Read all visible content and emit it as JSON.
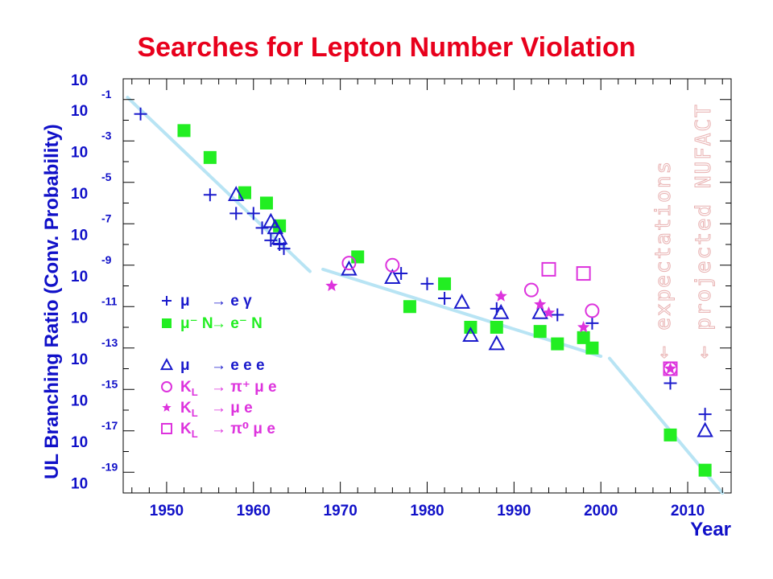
{
  "chart_data": {
    "type": "scatter",
    "title": "Searches for Lepton Number Violation",
    "xlabel": "Year",
    "ylabel": "UL Branching Ratio (Conv. Probability)",
    "xlim": [
      1945,
      2015
    ],
    "ylim_exponent": [
      -20,
      0
    ],
    "y_scale": "log",
    "x_ticks": [
      "1950",
      "1960",
      "1970",
      "1980",
      "1990",
      "2000",
      "2010"
    ],
    "y_ticks": [
      {
        "base": "10",
        "exp": ""
      },
      {
        "base": "10",
        "exp": "-1"
      },
      {
        "base": "10",
        "exp": "-3"
      },
      {
        "base": "10",
        "exp": "-5"
      },
      {
        "base": "10",
        "exp": "-7"
      },
      {
        "base": "10",
        "exp": "-9"
      },
      {
        "base": "10",
        "exp": "-11"
      },
      {
        "base": "10",
        "exp": "-13"
      },
      {
        "base": "10",
        "exp": "-15"
      },
      {
        "base": "10",
        "exp": "-17"
      },
      {
        "base": "10",
        "exp": "-19"
      }
    ],
    "colors": {
      "blue": "#1a1acc",
      "green": "#22ee22",
      "magenta": "#dd33dd",
      "trend": "#b8e4f4",
      "annotation": "#e8b0b0"
    },
    "series": [
      {
        "legend": [
          "μ",
          "→ e γ"
        ],
        "marker": "plus",
        "color": "#1a1acc",
        "points": [
          [
            1947,
            -1.7
          ],
          [
            1955,
            -5.6
          ],
          [
            1958,
            -6.5
          ],
          [
            1960,
            -6.5
          ],
          [
            1961,
            -7.2
          ],
          [
            1962,
            -7.8
          ],
          [
            1963,
            -8.0
          ],
          [
            1963.5,
            -8.2
          ],
          [
            1977,
            -9.4
          ],
          [
            1980,
            -9.9
          ],
          [
            1982,
            -10.6
          ],
          [
            1988,
            -11.1
          ],
          [
            1995,
            -11.4
          ],
          [
            1999,
            -11.8
          ],
          [
            2008,
            -14.7
          ],
          [
            2012,
            -16.2
          ]
        ]
      },
      {
        "legend": [
          "μ⁻ N",
          "→ e⁻ N"
        ],
        "marker": "square",
        "color": "#22ee22",
        "points": [
          [
            1952,
            -2.5
          ],
          [
            1955,
            -3.8
          ],
          [
            1959,
            -5.5
          ],
          [
            1961.5,
            -6.0
          ],
          [
            1963,
            -7.1
          ],
          [
            1972,
            -8.6
          ],
          [
            1978,
            -11.0
          ],
          [
            1982,
            -9.9
          ],
          [
            1985,
            -12.0
          ],
          [
            1988,
            -12.0
          ],
          [
            1993,
            -12.2
          ],
          [
            1995,
            -12.8
          ],
          [
            1998,
            -12.5
          ],
          [
            1999,
            -13.0
          ],
          [
            2008,
            -17.2
          ],
          [
            2012,
            -18.9
          ]
        ]
      },
      {
        "legend": [
          "μ",
          "→ e e e"
        ],
        "marker": "triangle",
        "color": "#1a1acc",
        "points": [
          [
            1958,
            -5.6
          ],
          [
            1962,
            -6.9
          ],
          [
            1962.5,
            -7.2
          ],
          [
            1963,
            -7.7
          ],
          [
            1971,
            -9.2
          ],
          [
            1976,
            -9.6
          ],
          [
            1984,
            -10.8
          ],
          [
            1985,
            -12.4
          ],
          [
            1988,
            -12.8
          ],
          [
            1988.5,
            -11.3
          ],
          [
            1993,
            -11.3
          ],
          [
            2012,
            -17.0
          ]
        ]
      },
      {
        "legend": [
          "K_L",
          "→ π⁺ μ e"
        ],
        "marker": "circle",
        "color": "#dd33dd",
        "points": [
          [
            1971,
            -8.9
          ],
          [
            1976,
            -9.0
          ],
          [
            1992,
            -10.2
          ],
          [
            1999,
            -11.2
          ],
          [
            2008,
            -14.0
          ]
        ]
      },
      {
        "legend": [
          "K_L",
          "→ μ e"
        ],
        "marker": "star",
        "color": "#dd33dd",
        "points": [
          [
            1969,
            -10.0
          ],
          [
            1988.5,
            -10.5
          ],
          [
            1993,
            -10.9
          ],
          [
            1994,
            -11.3
          ],
          [
            1998,
            -12.0
          ],
          [
            2008,
            -14.0
          ]
        ]
      },
      {
        "legend": [
          "K_L",
          "→ π⁰ μ e"
        ],
        "marker": "opensquare",
        "color": "#dd33dd",
        "points": [
          [
            1994,
            -9.2
          ],
          [
            1998,
            -9.4
          ],
          [
            2008,
            -14.0
          ]
        ]
      }
    ],
    "trend_lines": [
      [
        [
          1945.5,
          -0.9
        ],
        [
          1966.5,
          -9.3
        ]
      ],
      [
        [
          1968,
          -9.2
        ],
        [
          2000,
          -13.4
        ]
      ],
      [
        [
          2001,
          -13.5
        ],
        [
          2014,
          -20.0
        ]
      ]
    ],
    "annotations": [
      "← expectations",
      "← projected NUFACT"
    ]
  }
}
